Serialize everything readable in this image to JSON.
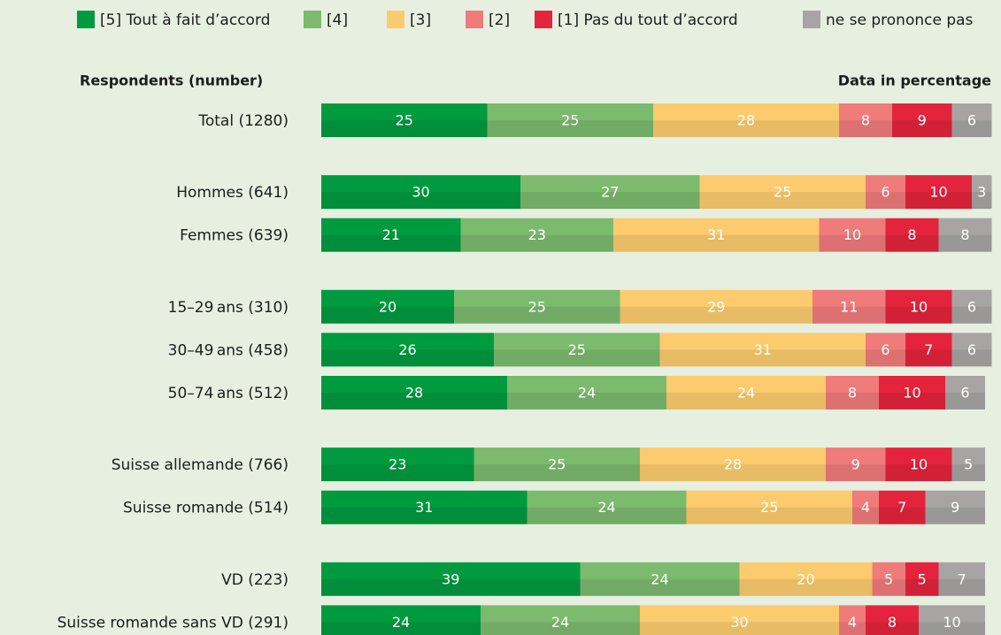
{
  "chart_data": {
    "type": "stacked-bar-horizontal",
    "header_left": "Respondents (number)",
    "header_right": "Data in percentage",
    "categories": [
      "Total (1280)",
      null,
      "Hommes (641)",
      "Femmes (639)",
      null,
      "15–29 ans (310)",
      "30–49 ans (458)",
      "50–74 ans (512)",
      null,
      "Suisse allemande (766)",
      "Suisse romande (514)",
      null,
      "VD (223)",
      "Suisse romande sans VD (291)"
    ],
    "series": [
      {
        "name": "[5] Tout à fait d’accord",
        "color": "#009b3f",
        "values": [
          25,
          null,
          30,
          21,
          null,
          20,
          26,
          28,
          null,
          23,
          31,
          null,
          39,
          24
        ]
      },
      {
        "name": "[4]",
        "color": "#7cba6e",
        "values": [
          25,
          null,
          27,
          23,
          null,
          25,
          25,
          24,
          null,
          25,
          24,
          null,
          24,
          24
        ]
      },
      {
        "name": "[3]",
        "color": "#fccb6e",
        "values": [
          28,
          null,
          25,
          31,
          null,
          29,
          31,
          24,
          null,
          28,
          25,
          null,
          20,
          30
        ]
      },
      {
        "name": "[2]",
        "color": "#f07b7b",
        "values": [
          8,
          null,
          6,
          10,
          null,
          11,
          6,
          8,
          null,
          9,
          4,
          null,
          5,
          4
        ]
      },
      {
        "name": "[1] Pas du tout d’accord",
        "color": "#e4243c",
        "values": [
          9,
          null,
          10,
          8,
          null,
          10,
          7,
          10,
          null,
          10,
          7,
          null,
          5,
          8
        ]
      },
      {
        "name": "ne se prononce pas",
        "color": "#a8a4a4",
        "values": [
          6,
          null,
          3,
          8,
          null,
          6,
          6,
          6,
          null,
          5,
          9,
          null,
          7,
          10
        ]
      }
    ]
  }
}
